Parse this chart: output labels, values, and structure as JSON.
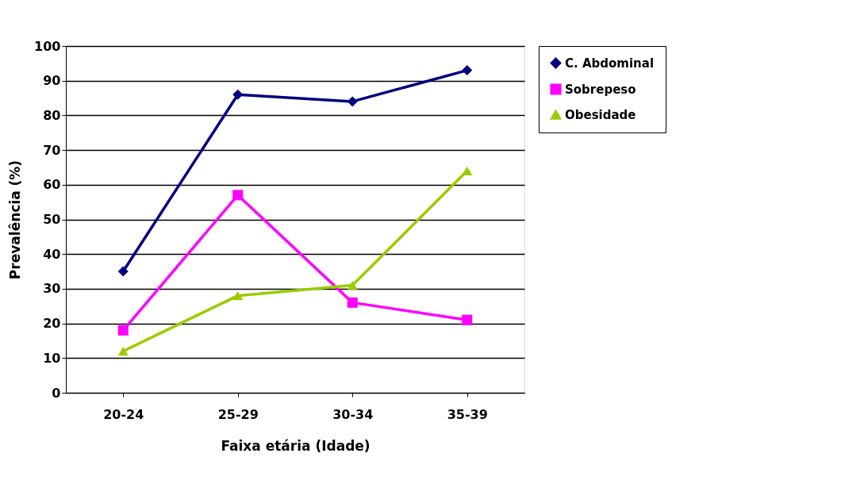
{
  "chart_data": {
    "type": "line",
    "xlabel": "Faixa etária (Idade)",
    "ylabel": "Prevalência (%)",
    "categories": [
      "20-24",
      "25-29",
      "30-34",
      "35-39"
    ],
    "series": [
      {
        "name": "C. Abdominal",
        "color": "#000080",
        "marker": "diamond",
        "values": [
          35,
          86,
          84,
          93
        ]
      },
      {
        "name": "Sobrepeso",
        "color": "#ff00ff",
        "marker": "square",
        "values": [
          18,
          57,
          26,
          21
        ]
      },
      {
        "name": "Obesidade",
        "color": "#99cc00",
        "marker": "triangle",
        "values": [
          12,
          28,
          31,
          64
        ]
      }
    ],
    "ylim": [
      0,
      100
    ],
    "yticks": [
      0,
      10,
      20,
      30,
      40,
      50,
      60,
      70,
      80,
      90,
      100
    ],
    "grid": "y",
    "legend": "right"
  }
}
